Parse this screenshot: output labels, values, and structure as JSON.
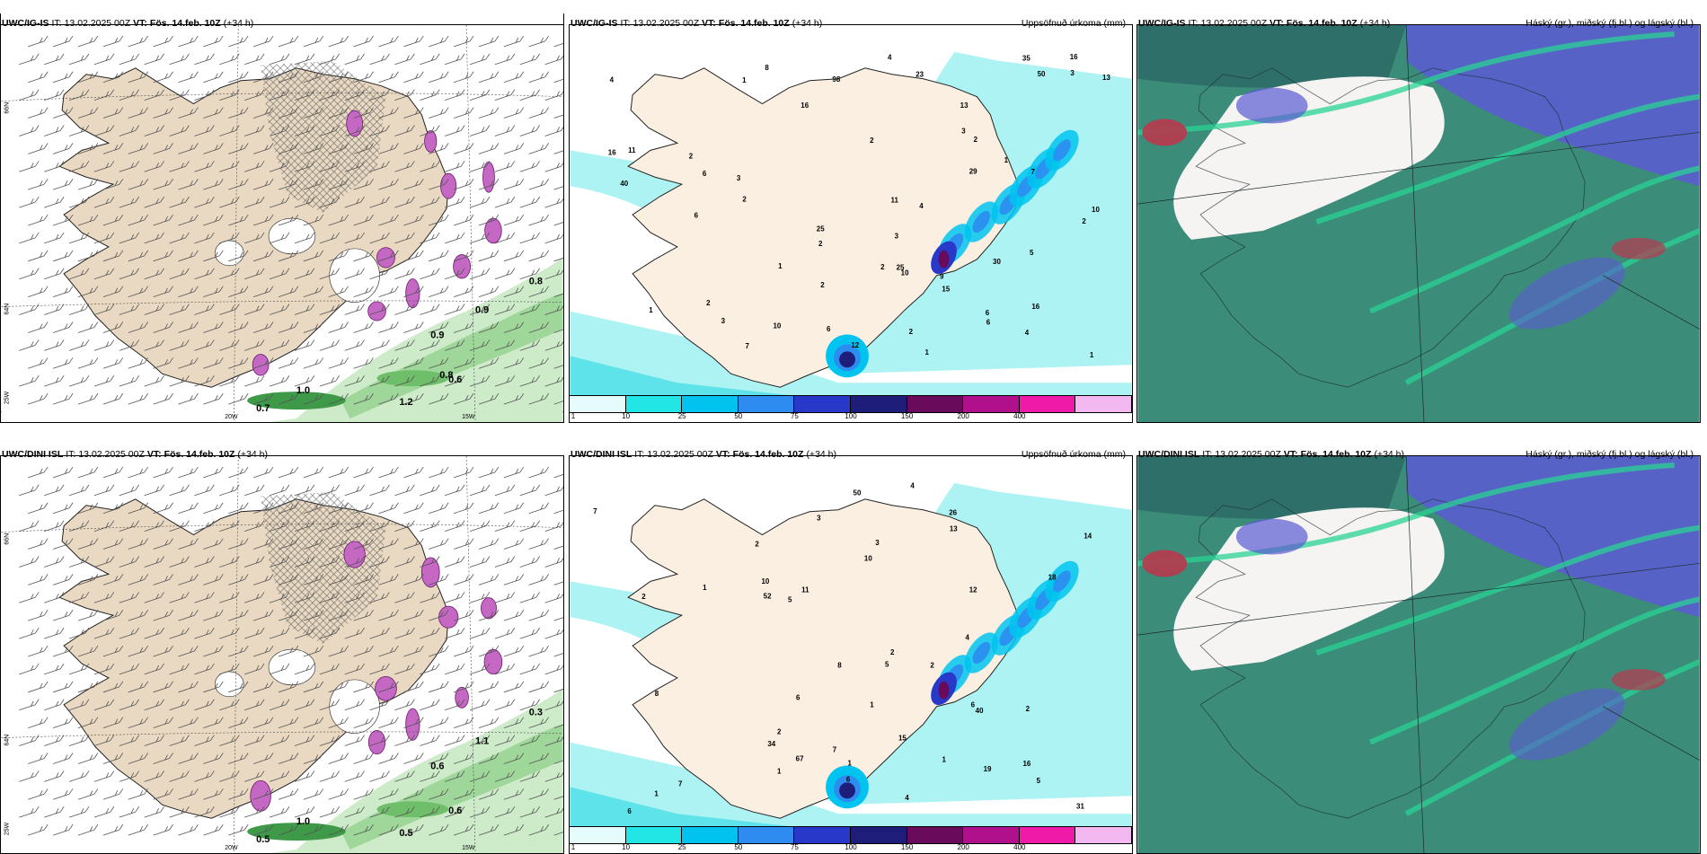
{
  "panels": [
    {
      "model": "UWC/IG-IS",
      "run_prefix": "IT:",
      "run": "13.02.2025 00Z",
      "vt_prefix": "VT:",
      "vt": "Fös. 14.feb. 10Z",
      "lead": "(+34 h)",
      "title_right": ""
    },
    {
      "model": "UWC/IG-IS",
      "run_prefix": "IT:",
      "run": "13.02.2025 00Z",
      "vt_prefix": "VT:",
      "vt": "Fös. 14.feb. 10Z",
      "lead": "(+34 h)",
      "title_right": "Uppsöfnuð úrkoma (mm)"
    },
    {
      "model": "UWC/IG-IS",
      "run_prefix": "IT:",
      "run": "13.02.2025 00Z",
      "vt_prefix": "VT:",
      "vt": "Fös. 14.feb. 10Z",
      "lead": "(+34 h)",
      "title_right": "Háský (gr.), miðský (fj.bl.) og lágský (bl.)"
    },
    {
      "model": "UWC/DINI ISL",
      "run_prefix": "IT:",
      "run": "13.02.2025 00Z",
      "vt_prefix": "VT:",
      "vt": "Fös. 14.feb. 10Z",
      "lead": "(+34 h)",
      "title_right": ""
    },
    {
      "model": "UWC/DINI ISL",
      "run_prefix": "IT:",
      "run": "13.02.2025 00Z",
      "vt_prefix": "VT:",
      "vt": "Fös. 14.feb. 10Z",
      "lead": "(+34 h)",
      "title_right": "Uppsöfnuð úrkoma (mm)"
    },
    {
      "model": "UWC/DINI ISL",
      "run_prefix": "IT:",
      "run": "13.02.2025 00Z",
      "vt_prefix": "VT:",
      "vt": "Fös. 14.feb. 10Z",
      "lead": "(+34 h)",
      "title_right": "Háský (gr.), miðský (fj.bl.) og lágský (bl.)"
    }
  ],
  "axis_labels": {
    "lon_20": "20W",
    "lon_15": "15W",
    "lat_66": "66N",
    "lat_64": "64N",
    "lon_25": "25W"
  },
  "precip_legend": {
    "ticks": [
      "1",
      "10",
      "25",
      "50",
      "75",
      "100",
      "150",
      "200",
      "400"
    ],
    "colors": [
      "#e6fbfb",
      "#22e6e6",
      "#00c4ef",
      "#2e8cf0",
      "#2838c8",
      "#1e1e7a",
      "#6a0a5a",
      "#b0108c",
      "#f01aa8",
      "#f3b8ef"
    ]
  },
  "colors": {
    "land": "#e9d9c2",
    "land_precip": "#fbefe1",
    "sea_precip": "#aef3f3",
    "sea_cloud": "#3c8c7a",
    "cloud_blue": "#5a5ad2",
    "cloud_green": "#29d394",
    "cloud_red": "#b8384e"
  },
  "wind_labels_top": [
    "0.8",
    "0.9",
    "0.9",
    "0.6",
    "1.0",
    "1.2",
    "0.7",
    "0.8"
  ],
  "wind_labels_bottom": [
    "0.3",
    "1.1",
    "0.6",
    "0.6",
    "1.0",
    "0.5",
    "0.5"
  ],
  "precip_numbers_top": [
    "1",
    "1",
    "2",
    "2",
    "1",
    "2",
    "2",
    "2",
    "2",
    "3",
    "1",
    "16",
    "25",
    "25",
    "29",
    "35",
    "40",
    "50",
    "30",
    "7",
    "6",
    "10",
    "7",
    "6",
    "4",
    "2",
    "6",
    "6",
    "12",
    "16",
    "15",
    "16",
    "13",
    "10",
    "8",
    "6",
    "4",
    "11",
    "10",
    "9",
    "98",
    "11",
    "13",
    "16",
    "23",
    "5",
    "2",
    "2",
    "3",
    "3",
    "1",
    "2",
    "3",
    "3",
    "4",
    "1",
    "4"
  ],
  "precip_numbers_bottom": [
    "1",
    "2",
    "2",
    "1",
    "3",
    "4",
    "16",
    "26",
    "19",
    "34",
    "31",
    "52",
    "67",
    "50",
    "1",
    "10",
    "6",
    "8",
    "8",
    "14",
    "7",
    "7",
    "6",
    "2",
    "40",
    "13",
    "11",
    "10",
    "18",
    "15",
    "5",
    "6",
    "3",
    "6",
    "5",
    "4",
    "1",
    "12",
    "2",
    "7",
    "1",
    "2",
    "2",
    "1",
    "4",
    "5"
  ]
}
